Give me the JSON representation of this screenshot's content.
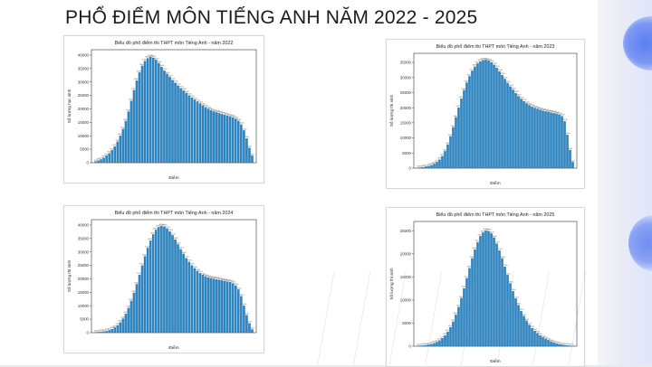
{
  "slide": {
    "title": "PHỔ ĐIỂM MÔN TIẾNG ANH NĂM 2022 - 2025"
  },
  "colors": {
    "bar": "#2b86c5",
    "bar_edge": "#1f5f8f",
    "axis": "#333333",
    "accent_blob": "#5b7ef0"
  },
  "chart_data": [
    {
      "type": "bar",
      "title": "Biểu đồ phổ điểm thi THPT môn Tiếng Anh - năm 2022",
      "xlabel": "Điểm",
      "ylabel": "Số lượng học sinh",
      "ylim": [
        0,
        42000
      ],
      "yticks": [
        0,
        5000,
        10000,
        15000,
        20000,
        25000,
        30000,
        35000,
        40000
      ],
      "grid": false,
      "values": [
        400,
        800,
        1200,
        1800,
        2600,
        3500,
        4600,
        6000,
        7800,
        10000,
        12500,
        15500,
        19000,
        23000,
        27000,
        30500,
        33500,
        36000,
        37800,
        38800,
        39300,
        39000,
        38200,
        37000,
        35600,
        34200,
        33000,
        31800,
        30700,
        29700,
        28700,
        27700,
        26800,
        25900,
        25000,
        24200,
        23400,
        22700,
        22000,
        21300,
        20600,
        20000,
        19500,
        19000,
        18700,
        18400,
        18100,
        17800,
        17500,
        17200,
        16800,
        16300,
        15500,
        14200,
        12000,
        9000,
        5500,
        2600
      ]
    },
    {
      "type": "bar",
      "title": "Biểu đồ phổ điểm thi THPT môn Tiếng Anh - năm 2023",
      "xlabel": "Điểm",
      "ylabel": "Số lượng thí sinh",
      "ylim": [
        0,
        38000
      ],
      "yticks": [
        0,
        5000,
        10000,
        15000,
        20000,
        25000,
        30000,
        35000
      ],
      "grid": false,
      "values": [
        100,
        200,
        300,
        500,
        700,
        1000,
        1400,
        2000,
        2800,
        4000,
        5600,
        7800,
        10500,
        13500,
        16800,
        20000,
        23000,
        25800,
        28300,
        30400,
        32200,
        33600,
        34600,
        35300,
        35700,
        35800,
        35500,
        35000,
        34200,
        33200,
        32000,
        30800,
        29500,
        28200,
        27000,
        25900,
        24800,
        23800,
        22900,
        22100,
        21400,
        20800,
        20300,
        19900,
        19600,
        19300,
        19000,
        18800,
        18600,
        18400,
        18200,
        18000,
        17700,
        17200,
        15500,
        11000,
        6000,
        2000
      ]
    },
    {
      "type": "bar",
      "title": "Biểu đồ phổ điểm thi THPT môn Tiếng Anh - năm 2024",
      "xlabel": "Điểm",
      "ylabel": "Số lượng thí sinh",
      "ylim": [
        0,
        42000
      ],
      "yticks": [
        0,
        5000,
        10000,
        15000,
        20000,
        25000,
        30000,
        35000,
        40000
      ],
      "grid": false,
      "values": [
        100,
        200,
        300,
        400,
        600,
        900,
        1300,
        1900,
        2700,
        3800,
        5200,
        7000,
        9200,
        11800,
        14800,
        18000,
        21500,
        25000,
        28400,
        31500,
        34200,
        36500,
        38200,
        39200,
        39600,
        39400,
        38700,
        37600,
        36200,
        34600,
        32800,
        31000,
        29300,
        27700,
        26300,
        25000,
        23900,
        22900,
        22100,
        21400,
        20900,
        20500,
        20200,
        20000,
        19800,
        19600,
        19400,
        19200,
        19000,
        18800,
        18300,
        17500,
        16000,
        13500,
        10000,
        6500,
        3500,
        1200
      ]
    },
    {
      "type": "bar",
      "title": "Biểu đồ phổ điểm thi THPT môn Tiếng Anh - năm 2025",
      "xlabel": "Điểm",
      "ylabel": "Số lượng thí sinh",
      "ylim": [
        0,
        27000
      ],
      "yticks": [
        0,
        5000,
        10000,
        15000,
        20000,
        25000
      ],
      "grid": false,
      "values": [
        60,
        100,
        150,
        220,
        320,
        450,
        650,
        900,
        1250,
        1700,
        2300,
        3100,
        4100,
        5300,
        6800,
        8500,
        10400,
        12500,
        14700,
        16900,
        19000,
        20900,
        22500,
        23800,
        24600,
        25000,
        24900,
        24400,
        23500,
        22200,
        20700,
        19000,
        17200,
        15400,
        13600,
        11900,
        10300,
        8900,
        7600,
        6500,
        5500,
        4600,
        3900,
        3300,
        2800,
        2300,
        1900,
        1600,
        1300,
        1000,
        800,
        600,
        450,
        320,
        220,
        150,
        90,
        50
      ]
    }
  ]
}
